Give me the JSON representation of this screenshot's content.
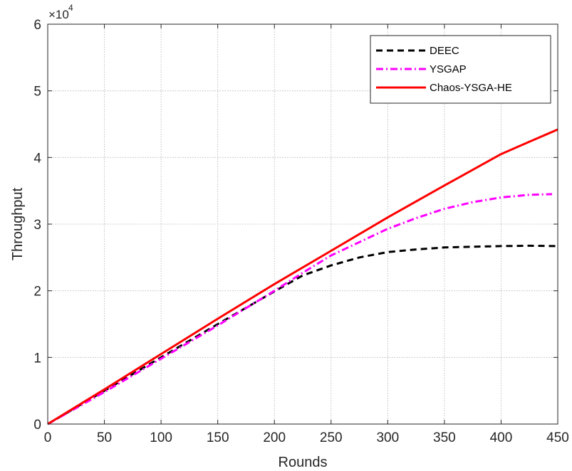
{
  "chart_data": {
    "type": "line",
    "title": "",
    "xlabel": "Rounds",
    "ylabel": "Throughput",
    "xlim": [
      0,
      450
    ],
    "ylim": [
      0,
      60000
    ],
    "xticks": [
      "0",
      "50",
      "100",
      "150",
      "200",
      "250",
      "300",
      "350",
      "400",
      "450"
    ],
    "yticks": [
      "0",
      "1",
      "2",
      "3",
      "4",
      "5",
      "6"
    ],
    "y_multiplier": {
      "base": "×10",
      "exponent": "4"
    },
    "grid": true,
    "legend_position": "top-right",
    "series": [
      {
        "name": "DEEC",
        "color": "#000000",
        "style": "dashed",
        "x": [
          0,
          50,
          100,
          150,
          200,
          225,
          250,
          275,
          300,
          325,
          350,
          375,
          400,
          425,
          450
        ],
        "y": [
          0,
          5000,
          10000,
          15000,
          19900,
          22300,
          23800,
          25000,
          25800,
          26200,
          26500,
          26600,
          26700,
          26750,
          26700
        ]
      },
      {
        "name": "YSGAP",
        "color": "#ff00ff",
        "style": "dashdot",
        "x": [
          0,
          50,
          100,
          150,
          200,
          225,
          250,
          275,
          300,
          325,
          350,
          375,
          400,
          425,
          445
        ],
        "y": [
          0,
          4800,
          9800,
          14800,
          20000,
          22700,
          25300,
          27300,
          29300,
          30900,
          32300,
          33300,
          34000,
          34400,
          34500
        ]
      },
      {
        "name": "Chaos-YSGA-HE",
        "color": "#ff0000",
        "style": "solid",
        "x": [
          0,
          50,
          100,
          150,
          200,
          250,
          300,
          350,
          400,
          420,
          450
        ],
        "y": [
          0,
          5200,
          10500,
          15800,
          21000,
          26000,
          31000,
          35800,
          40500,
          42000,
          44200
        ]
      }
    ]
  }
}
